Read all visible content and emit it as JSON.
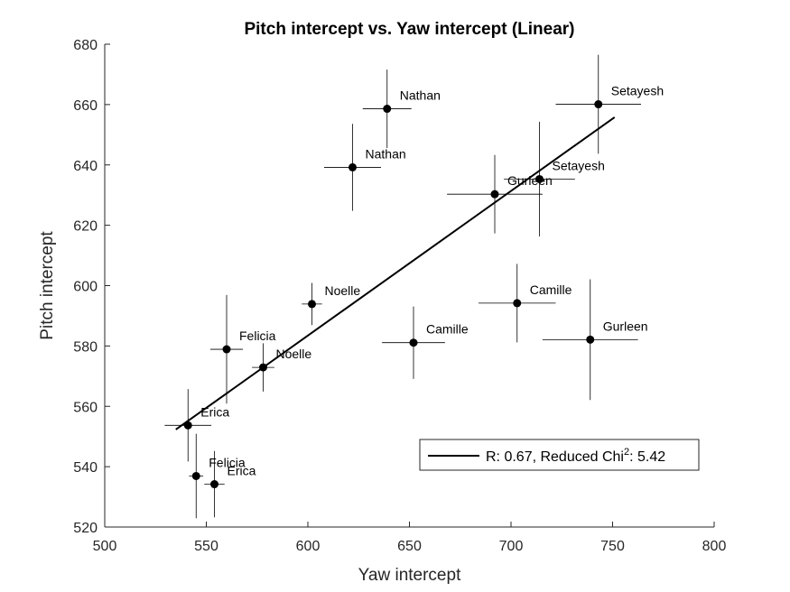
{
  "chart_data": {
    "type": "scatter",
    "title": "Pitch intercept vs. Yaw intercept (Linear)",
    "xlabel": "Yaw intercept",
    "ylabel": "Pitch intercept",
    "xlim": [
      500,
      800
    ],
    "ylim": [
      520,
      680
    ],
    "xticks": [
      "500",
      "550",
      "600",
      "650",
      "700",
      "750",
      "800"
    ],
    "yticks": [
      "520",
      "540",
      "560",
      "580",
      "600",
      "620",
      "640",
      "660",
      "680"
    ],
    "grid": false,
    "points": [
      {
        "label": "Nathan",
        "x": 639,
        "y": 658.6,
        "xerr": 12,
        "yerr": 13
      },
      {
        "label": "Nathan",
        "x": 622,
        "y": 639.2,
        "xerr": 14,
        "yerr": 14.4
      },
      {
        "label": "Setayesh",
        "x": 743,
        "y": 660.1,
        "xerr": 21,
        "yerr": 16.4
      },
      {
        "label": "Setayesh",
        "x": 714,
        "y": 635.3,
        "xerr": 17.5,
        "yerr": 19
      },
      {
        "label": "Gurleen",
        "x": 692,
        "y": 630.3,
        "xerr": 23.5,
        "yerr": 13
      },
      {
        "label": "Gurleen",
        "x": 739,
        "y": 582.1,
        "xerr": 23.5,
        "yerr": 20
      },
      {
        "label": "Camille",
        "x": 703,
        "y": 594.2,
        "xerr": 19,
        "yerr": 13
      },
      {
        "label": "Camille",
        "x": 652,
        "y": 581.1,
        "xerr": 15.5,
        "yerr": 12
      },
      {
        "label": "Noelle",
        "x": 602,
        "y": 593.9,
        "xerr": 5,
        "yerr": 7
      },
      {
        "label": "Noelle",
        "x": 578,
        "y": 572.9,
        "xerr": 5.5,
        "yerr": 8
      },
      {
        "label": "Felicia",
        "x": 560,
        "y": 578.9,
        "xerr": 8,
        "yerr": 18
      },
      {
        "label": "Felicia",
        "x": 545,
        "y": 536.9,
        "xerr": 3.5,
        "yerr": 14
      },
      {
        "label": "Erica",
        "x": 541,
        "y": 553.7,
        "xerr": 11.5,
        "yerr": 12
      },
      {
        "label": "Erica",
        "x": 554,
        "y": 534.2,
        "xerr": 5,
        "yerr": 11
      }
    ],
    "fit_line": {
      "x": [
        535,
        751
      ],
      "y": [
        552.3,
        655.8
      ]
    },
    "legend": {
      "position": "bottom-right",
      "text_main": "R: 0.67, Reduced Chi",
      "text_sup": "2",
      "text_tail": ": 5.42"
    },
    "colors": {
      "marker": "#000000",
      "errorbar": "#000000",
      "fit": "#000000",
      "axis": "#262626"
    }
  }
}
